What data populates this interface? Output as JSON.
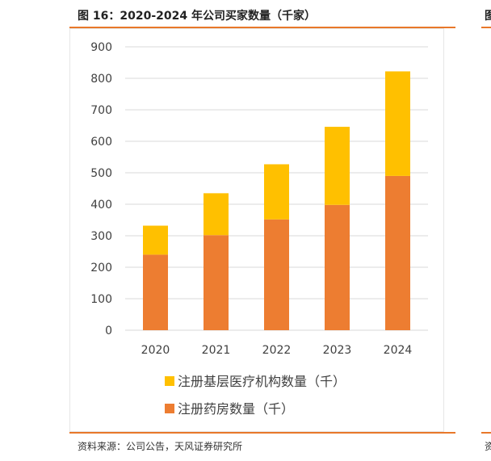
{
  "figure": {
    "title": "图 16：2020-2024 年公司买家数量（千家）",
    "source": "资料来源：公司公告，天风证券研究所",
    "next_title_fragment": "图",
    "next_source_fragment": "资"
  },
  "colors": {
    "rule": "#e8782a",
    "series_pharmacy": "#ed7d31",
    "series_institutions": "#ffc000",
    "grid": "#d9d9d9",
    "axis_text": "#404040"
  },
  "chart_data": {
    "type": "bar",
    "stacked": true,
    "title": "",
    "xlabel": "",
    "ylabel": "",
    "categories": [
      "2020",
      "2021",
      "2022",
      "2023",
      "2024"
    ],
    "ylim": [
      0,
      900
    ],
    "yticks": [
      0,
      100,
      200,
      300,
      400,
      500,
      600,
      700,
      800,
      900
    ],
    "grid": true,
    "legend_position": "bottom",
    "series": [
      {
        "name": "注册药房数量（千）",
        "color": "#ed7d31",
        "values": [
          240,
          302,
          352,
          398,
          490
        ]
      },
      {
        "name": "注册基层医疗机构数量（千）",
        "color": "#ffc000",
        "values": [
          92,
          133,
          175,
          248,
          332
        ]
      }
    ]
  }
}
